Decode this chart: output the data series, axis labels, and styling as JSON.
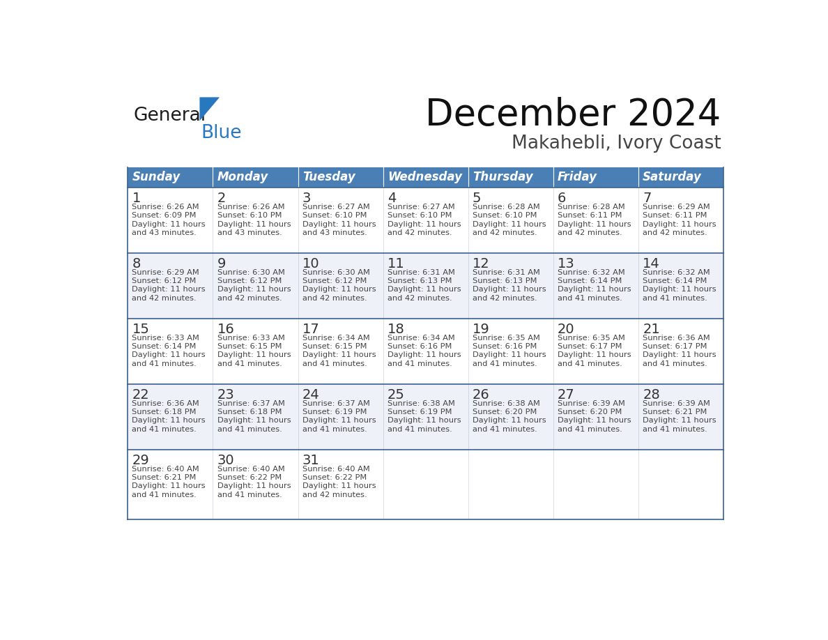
{
  "title": "December 2024",
  "subtitle": "Makahebli, Ivory Coast",
  "header_color": "#4A7FB5",
  "header_text_color": "#FFFFFF",
  "header_font_size": 12,
  "day_names": [
    "Sunday",
    "Monday",
    "Tuesday",
    "Wednesday",
    "Thursday",
    "Friday",
    "Saturday"
  ],
  "title_font_size": 38,
  "subtitle_font_size": 19,
  "cell_bg_color": "#FFFFFF",
  "alt_row_bg_color": "#EEF2F8",
  "week5_bg_color": "#EEF2F8",
  "grid_color": "#3A6090",
  "row_divider_color": "#3A6090",
  "day_number_color": "#333333",
  "text_color": "#444444",
  "logo_general_color": "#1A1A1A",
  "logo_blue_color": "#2878C0",
  "logo_triangle_color": "#2878C0",
  "weeks": [
    [
      {
        "day": 1,
        "sunrise": "6:26 AM",
        "sunset": "6:09 PM",
        "daylight": "11 hours and 43 minutes."
      },
      {
        "day": 2,
        "sunrise": "6:26 AM",
        "sunset": "6:10 PM",
        "daylight": "11 hours and 43 minutes."
      },
      {
        "day": 3,
        "sunrise": "6:27 AM",
        "sunset": "6:10 PM",
        "daylight": "11 hours and 43 minutes."
      },
      {
        "day": 4,
        "sunrise": "6:27 AM",
        "sunset": "6:10 PM",
        "daylight": "11 hours and 42 minutes."
      },
      {
        "day": 5,
        "sunrise": "6:28 AM",
        "sunset": "6:10 PM",
        "daylight": "11 hours and 42 minutes."
      },
      {
        "day": 6,
        "sunrise": "6:28 AM",
        "sunset": "6:11 PM",
        "daylight": "11 hours and 42 minutes."
      },
      {
        "day": 7,
        "sunrise": "6:29 AM",
        "sunset": "6:11 PM",
        "daylight": "11 hours and 42 minutes."
      }
    ],
    [
      {
        "day": 8,
        "sunrise": "6:29 AM",
        "sunset": "6:12 PM",
        "daylight": "11 hours and 42 minutes."
      },
      {
        "day": 9,
        "sunrise": "6:30 AM",
        "sunset": "6:12 PM",
        "daylight": "11 hours and 42 minutes."
      },
      {
        "day": 10,
        "sunrise": "6:30 AM",
        "sunset": "6:12 PM",
        "daylight": "11 hours and 42 minutes."
      },
      {
        "day": 11,
        "sunrise": "6:31 AM",
        "sunset": "6:13 PM",
        "daylight": "11 hours and 42 minutes."
      },
      {
        "day": 12,
        "sunrise": "6:31 AM",
        "sunset": "6:13 PM",
        "daylight": "11 hours and 42 minutes."
      },
      {
        "day": 13,
        "sunrise": "6:32 AM",
        "sunset": "6:14 PM",
        "daylight": "11 hours and 41 minutes."
      },
      {
        "day": 14,
        "sunrise": "6:32 AM",
        "sunset": "6:14 PM",
        "daylight": "11 hours and 41 minutes."
      }
    ],
    [
      {
        "day": 15,
        "sunrise": "6:33 AM",
        "sunset": "6:14 PM",
        "daylight": "11 hours and 41 minutes."
      },
      {
        "day": 16,
        "sunrise": "6:33 AM",
        "sunset": "6:15 PM",
        "daylight": "11 hours and 41 minutes."
      },
      {
        "day": 17,
        "sunrise": "6:34 AM",
        "sunset": "6:15 PM",
        "daylight": "11 hours and 41 minutes."
      },
      {
        "day": 18,
        "sunrise": "6:34 AM",
        "sunset": "6:16 PM",
        "daylight": "11 hours and 41 minutes."
      },
      {
        "day": 19,
        "sunrise": "6:35 AM",
        "sunset": "6:16 PM",
        "daylight": "11 hours and 41 minutes."
      },
      {
        "day": 20,
        "sunrise": "6:35 AM",
        "sunset": "6:17 PM",
        "daylight": "11 hours and 41 minutes."
      },
      {
        "day": 21,
        "sunrise": "6:36 AM",
        "sunset": "6:17 PM",
        "daylight": "11 hours and 41 minutes."
      }
    ],
    [
      {
        "day": 22,
        "sunrise": "6:36 AM",
        "sunset": "6:18 PM",
        "daylight": "11 hours and 41 minutes."
      },
      {
        "day": 23,
        "sunrise": "6:37 AM",
        "sunset": "6:18 PM",
        "daylight": "11 hours and 41 minutes."
      },
      {
        "day": 24,
        "sunrise": "6:37 AM",
        "sunset": "6:19 PM",
        "daylight": "11 hours and 41 minutes."
      },
      {
        "day": 25,
        "sunrise": "6:38 AM",
        "sunset": "6:19 PM",
        "daylight": "11 hours and 41 minutes."
      },
      {
        "day": 26,
        "sunrise": "6:38 AM",
        "sunset": "6:20 PM",
        "daylight": "11 hours and 41 minutes."
      },
      {
        "day": 27,
        "sunrise": "6:39 AM",
        "sunset": "6:20 PM",
        "daylight": "11 hours and 41 minutes."
      },
      {
        "day": 28,
        "sunrise": "6:39 AM",
        "sunset": "6:21 PM",
        "daylight": "11 hours and 41 minutes."
      }
    ],
    [
      {
        "day": 29,
        "sunrise": "6:40 AM",
        "sunset": "6:21 PM",
        "daylight": "11 hours and 41 minutes."
      },
      {
        "day": 30,
        "sunrise": "6:40 AM",
        "sunset": "6:22 PM",
        "daylight": "11 hours and 41 minutes."
      },
      {
        "day": 31,
        "sunrise": "6:40 AM",
        "sunset": "6:22 PM",
        "daylight": "11 hours and 42 minutes."
      },
      null,
      null,
      null,
      null
    ]
  ]
}
